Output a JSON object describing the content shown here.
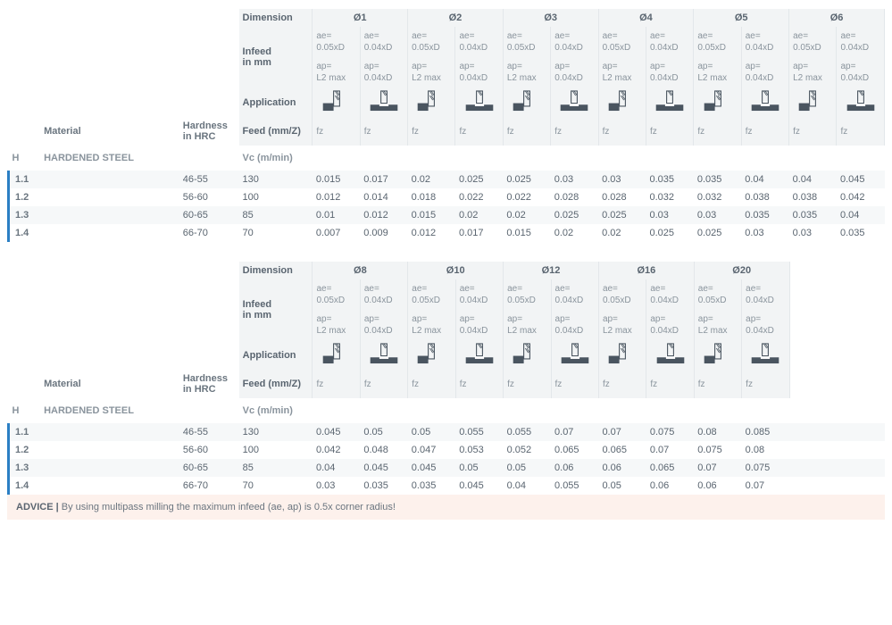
{
  "labels": {
    "dimension": "Dimension",
    "infeed": "Infeed\nin mm",
    "application": "Application",
    "material": "Material",
    "hardness": "Hardness\nin HRC",
    "feed": "Feed (mm/Z)",
    "vc": "Vc (m/min)",
    "hCode": "H",
    "hName": "HARDENED STEEL",
    "fz": "fz",
    "ae1": "ae=\n0.05xD",
    "ae2": "ae=\n0.04xD",
    "ap1": "ap=\nL2 max",
    "ap2": "ap=\n0.04xD"
  },
  "colors": {
    "accent": "#2b7fc4",
    "header_bg": "#f2f4f5",
    "stripe_bg": "#f6f8f9",
    "text_main": "#5a6570",
    "text_muted": "#8a949d",
    "advice_bg": "#fdf1ec",
    "icon_fill": "#4a5560"
  },
  "table1": {
    "diameters": [
      "Ø1",
      "Ø2",
      "Ø3",
      "Ø4",
      "Ø5",
      "Ø6"
    ],
    "rows": [
      {
        "id": "1.1",
        "hrc": "46-55",
        "vc": "130",
        "fz": [
          "0.015",
          "0.017",
          "0.02",
          "0.025",
          "0.025",
          "0.03",
          "0.03",
          "0.035",
          "0.035",
          "0.04",
          "0.04",
          "0.045"
        ]
      },
      {
        "id": "1.2",
        "hrc": "56-60",
        "vc": "100",
        "fz": [
          "0.012",
          "0.014",
          "0.018",
          "0.022",
          "0.022",
          "0.028",
          "0.028",
          "0.032",
          "0.032",
          "0.038",
          "0.038",
          "0.042"
        ]
      },
      {
        "id": "1.3",
        "hrc": "60-65",
        "vc": "85",
        "fz": [
          "0.01",
          "0.012",
          "0.015",
          "0.02",
          "0.02",
          "0.025",
          "0.025",
          "0.03",
          "0.03",
          "0.035",
          "0.035",
          "0.04"
        ]
      },
      {
        "id": "1.4",
        "hrc": "66-70",
        "vc": "70",
        "fz": [
          "0.007",
          "0.009",
          "0.012",
          "0.017",
          "0.015",
          "0.02",
          "0.02",
          "0.025",
          "0.025",
          "0.03",
          "0.03",
          "0.035"
        ]
      }
    ]
  },
  "table2": {
    "diameters": [
      "Ø8",
      "Ø10",
      "Ø12",
      "Ø16",
      "Ø20"
    ],
    "rows": [
      {
        "id": "1.1",
        "hrc": "46-55",
        "vc": "130",
        "fz": [
          "0.045",
          "0.05",
          "0.05",
          "0.055",
          "0.055",
          "0.07",
          "0.07",
          "0.075",
          "0.08",
          "0.085"
        ]
      },
      {
        "id": "1.2",
        "hrc": "56-60",
        "vc": "100",
        "fz": [
          "0.042",
          "0.048",
          "0.047",
          "0.053",
          "0.052",
          "0.065",
          "0.065",
          "0.07",
          "0.075",
          "0.08"
        ]
      },
      {
        "id": "1.3",
        "hrc": "60-65",
        "vc": "85",
        "fz": [
          "0.04",
          "0.045",
          "0.045",
          "0.05",
          "0.05",
          "0.06",
          "0.06",
          "0.065",
          "0.07",
          "0.075"
        ]
      },
      {
        "id": "1.4",
        "hrc": "66-70",
        "vc": "70",
        "fz": [
          "0.03",
          "0.035",
          "0.035",
          "0.045",
          "0.04",
          "0.055",
          "0.05",
          "0.06",
          "0.06",
          "0.07"
        ]
      }
    ]
  },
  "advice": {
    "label": "ADVICE",
    "text": "By using multipass milling the maximum infeed (ae, ap) is 0.5x corner radius!"
  }
}
